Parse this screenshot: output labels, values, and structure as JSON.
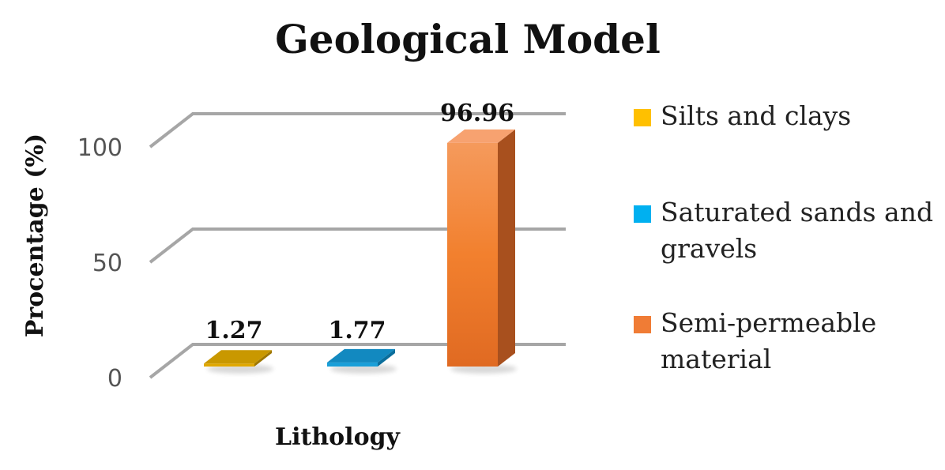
{
  "chart_data": {
    "type": "bar",
    "title": "Geological Model",
    "xlabel": "Lithology",
    "ylabel": "Procentage (%)",
    "ylim": [
      0,
      100
    ],
    "yticks": [
      0,
      50,
      100
    ],
    "grid": true,
    "legend_position": "right",
    "categories": [
      "Silts and clays",
      "Saturated sands and gravels",
      "Semi-permeable material"
    ],
    "values": [
      1.27,
      1.77,
      96.96
    ],
    "data_labels": [
      "1.27",
      "1.77",
      "96.96"
    ],
    "legend": [
      {
        "lines": [
          "Silts and clays"
        ],
        "color": "#FFC000"
      },
      {
        "lines": [
          "Saturated sands and",
          "gravels"
        ],
        "color": "#00B0F0"
      },
      {
        "lines": [
          "Semi-permeable",
          "material"
        ],
        "color": "#F07C35"
      }
    ],
    "colors": {
      "front": [
        "#E0A800",
        "#1A9FD8",
        "#F07C35"
      ],
      "top": [
        "#C99800",
        "#1289C0",
        "#F7A270"
      ],
      "side": [
        "#9E7600",
        "#0A6E9C",
        "#A8501E"
      ]
    }
  }
}
